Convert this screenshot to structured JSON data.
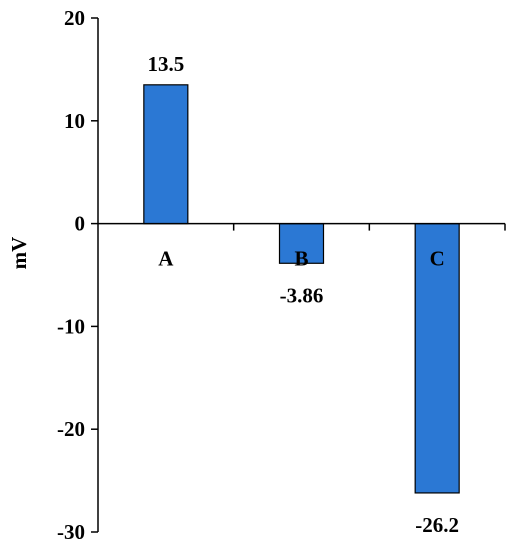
{
  "chart_data": {
    "type": "bar",
    "categories": [
      "A",
      "B",
      "C"
    ],
    "values": [
      13.5,
      -3.86,
      -26.2
    ],
    "data_labels": [
      "13.5",
      "-3.86",
      "-26.2"
    ],
    "title": "",
    "xlabel": "",
    "ylabel": "mV",
    "ylim": [
      -30,
      20
    ],
    "yticks": [
      20,
      10,
      0,
      -10,
      -20,
      -30
    ],
    "ytick_labels": [
      "20",
      "10",
      "0",
      "-10",
      "-20",
      "-30"
    ],
    "grid": false,
    "legend": "none",
    "colors": {
      "bar_fill": "#2b78d4",
      "bar_stroke": "#000000",
      "axis": "#000000"
    }
  }
}
